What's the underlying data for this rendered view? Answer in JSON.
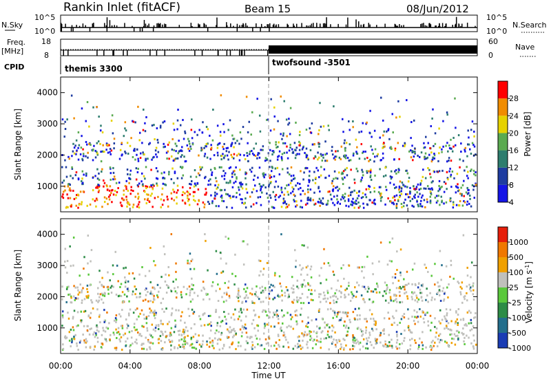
{
  "header": {
    "title": "Rankin Inlet (fitACF)",
    "beam": "Beam 15",
    "date": "08/Jun/2012"
  },
  "strips": {
    "nsky_label": "N.Sky",
    "nsky_ticks": [
      "10^5",
      "10^0"
    ],
    "nsearch_label": "N.Search",
    "nsearch_ticks": [
      "10^5",
      "10^0"
    ],
    "freq_label_1": "Freq.",
    "freq_label_2": "[MHz]",
    "freq_ticks": [
      "18",
      "8"
    ],
    "nave_label": "Nave",
    "nave_ticks": [
      "60",
      "0"
    ],
    "cpid_label": "CPID",
    "cpid_segments": [
      {
        "name": "themis 3300",
        "start_h": 0,
        "end_h": 12
      },
      {
        "name": "twofsound -3501",
        "start_h": 12,
        "end_h": 24
      }
    ]
  },
  "power_panel": {
    "ylabel": "Slant Range [km]",
    "yticks": [
      "4000",
      "3000",
      "2000",
      "1000"
    ],
    "colorbar_label": "Power [dB]",
    "colorbar_ticks": [
      "28",
      "24",
      "20",
      "16",
      "12",
      "8",
      "4"
    ],
    "colors": [
      "#1414e6",
      "#1e3ca0",
      "#2d7d6e",
      "#5aaa50",
      "#e6d200",
      "#f08c00",
      "#ff0000"
    ]
  },
  "velocity_panel": {
    "ylabel": "Slant Range [km]",
    "yticks": [
      "4000",
      "3000",
      "2000",
      "1000"
    ],
    "colorbar_label": "Velocity [m s^-1]",
    "colorbar_ticks": [
      "1000",
      "500",
      "100",
      "25",
      "-25",
      "-100",
      "-500",
      "-1000"
    ],
    "colors": [
      "#1a3cb4",
      "#236e8c",
      "#2d8c46",
      "#5ac83c",
      "#c0c0bc",
      "#f0a000",
      "#f07800",
      "#e61e0a"
    ]
  },
  "xaxis": {
    "label": "Time UT",
    "ticks": [
      "00:00",
      "04:00",
      "08:00",
      "12:00",
      "16:00",
      "20:00",
      "00:00"
    ]
  }
}
